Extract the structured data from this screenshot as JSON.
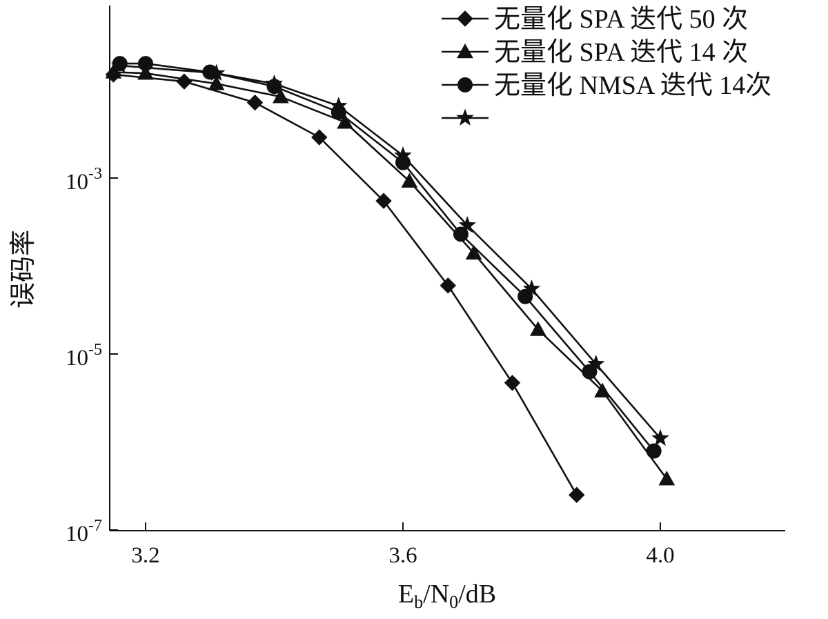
{
  "chart_data": {
    "type": "line",
    "y_scale": "log",
    "title": "",
    "xlabel": "E_b/N_0/dB",
    "xlabel_parts": {
      "E": "E",
      "b": "b",
      "slash1": "/",
      "N": "N",
      "zero": "0",
      "rest": "/dB"
    },
    "ylabel": "误码率",
    "xlim": [
      3.15,
      4.4
    ],
    "ylim": [
      1e-07,
      0.1
    ],
    "xticks": [
      {
        "value": 3.2,
        "label": "3.2"
      },
      {
        "value": 3.6,
        "label": "3.6"
      },
      {
        "value": 4.0,
        "label": "4.0"
      }
    ],
    "yticks": [
      {
        "value": 0.001,
        "base": "10",
        "exp": "-3"
      },
      {
        "value": 1e-05,
        "base": "10",
        "exp": "-5"
      },
      {
        "value": 1e-07,
        "base": "10",
        "exp": "-7"
      }
    ],
    "grid": false,
    "legend_position": "top-right",
    "series": [
      {
        "name": "无量化 SPA 迭代 50 次",
        "marker": "diamond",
        "x": [
          3.15,
          3.26,
          3.37,
          3.47,
          3.57,
          3.67,
          3.77,
          3.87
        ],
        "y": [
          0.015,
          0.0125,
          0.0072,
          0.0029,
          0.00055,
          6e-05,
          4.7e-06,
          2.5e-07
        ]
      },
      {
        "name": "无量化 SPA 迭代 14 次",
        "marker": "triangle",
        "x": [
          3.15,
          3.2,
          3.31,
          3.41,
          3.51,
          3.61,
          3.71,
          3.81,
          3.91,
          4.01
        ],
        "y": [
          0.016,
          0.0155,
          0.0118,
          0.0084,
          0.0043,
          0.00092,
          0.00014,
          1.9e-05,
          3.8e-06,
          3.8e-07
        ]
      },
      {
        "name": "无量化 NMSA 迭代 14次",
        "marker": "circle",
        "x": [
          3.16,
          3.2,
          3.3,
          3.4,
          3.5,
          3.6,
          3.69,
          3.79,
          3.89,
          3.99
        ],
        "y": [
          0.02,
          0.02,
          0.016,
          0.011,
          0.0056,
          0.0015,
          0.00023,
          4.5e-05,
          6.3e-06,
          7.9e-07
        ]
      },
      {
        "marker": "star",
        "x": [
          3.16,
          3.31,
          3.4,
          3.5,
          3.6,
          3.7,
          3.8,
          3.9,
          4.0
        ],
        "y": [
          0.019,
          0.0155,
          0.0118,
          0.0066,
          0.0018,
          0.00029,
          5.5e-05,
          7.7e-06,
          1.1e-06
        ]
      }
    ]
  }
}
